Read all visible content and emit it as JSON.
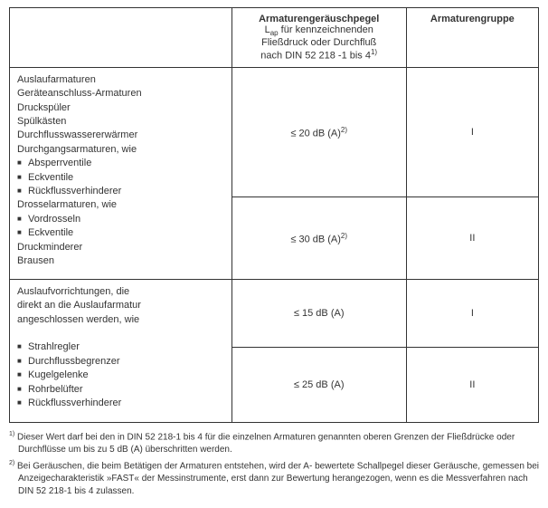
{
  "header": {
    "blank": "",
    "col2_bold": "Armaturengeräuschpegel",
    "col2_line2_pre": "L",
    "col2_line2_sub": "ap",
    "col2_line2_post": "  für kennzeichnenden",
    "col2_line3": "Fließdruck oder Durchfluß",
    "col2_line4_pre": "nach DIN 52 218 -1 bis 4",
    "col2_line4_sup": "1)",
    "col3_bold": "Armaturengruppe"
  },
  "group1": {
    "items": [
      {
        "text": "Auslaufarmaturen",
        "bullet": false
      },
      {
        "text": "Geräteanschluss-Armaturen",
        "bullet": false
      },
      {
        "text": "Druckspüler",
        "bullet": false
      },
      {
        "text": "Spülkästen",
        "bullet": false
      },
      {
        "text": "Durchflusswassererwärmer",
        "bullet": false
      },
      {
        "text": "Durchgangsarmaturen, wie",
        "bullet": false
      },
      {
        "text": "Absperrventile",
        "bullet": true
      },
      {
        "text": "Eckventile",
        "bullet": true
      },
      {
        "text": "Rückflussverhinderer",
        "bullet": true
      },
      {
        "text": "Drosselarmaturen, wie",
        "bullet": false
      },
      {
        "text": "Vordrosseln",
        "bullet": true
      },
      {
        "text": "Eckventile",
        "bullet": true
      },
      {
        "text": "Druckminderer",
        "bullet": false
      },
      {
        "text": "Brausen",
        "bullet": false
      }
    ],
    "row1_noise_pre": "≤ 20 dB (A)",
    "row1_noise_sup": "2)",
    "row1_group": "I",
    "row2_noise_pre": "≤ 30 dB (A)",
    "row2_noise_sup": "2)",
    "row2_group": "II"
  },
  "group2": {
    "items": [
      {
        "text": "Auslaufvorrichtungen, die",
        "bullet": false
      },
      {
        "text": "direkt an die Auslaufarmatur",
        "bullet": false
      },
      {
        "text": "angeschlossen werden, wie",
        "bullet": false
      },
      {
        "text": " ",
        "bullet": false
      },
      {
        "text": "Strahlregler",
        "bullet": true
      },
      {
        "text": "Durchflussbegrenzer",
        "bullet": true
      },
      {
        "text": "Kugelgelenke",
        "bullet": true
      },
      {
        "text": "Rohrbelüfter",
        "bullet": true
      },
      {
        "text": "Rückflussverhinderer",
        "bullet": true
      }
    ],
    "row1_noise": "≤ 15 dB (A)",
    "row1_group": "I",
    "row2_noise": "≤ 25 dB (A)",
    "row2_group": "II"
  },
  "footnotes": {
    "fn1_mark": "1)",
    "fn1_text": "Dieser Wert darf bei den in DIN 52 218-1 bis 4 für die einzelnen Armaturen genannten oberen Grenzen der Fließdrücke oder Durchflüsse um bis zu 5 dB (A) überschritten werden.",
    "fn2_mark": "2)",
    "fn2_text": "Bei Geräuschen, die beim Betätigen der Armaturen entstehen, wird der A- bewertete Schallpegel dieser Geräusche, gemessen bei Anzeigecharakteristik »FAST« der Messinstrumente, erst dann zur Bewertung herangezogen, wenn es die Messverfahren nach DIN 52 218-1 bis 4 zulassen."
  }
}
